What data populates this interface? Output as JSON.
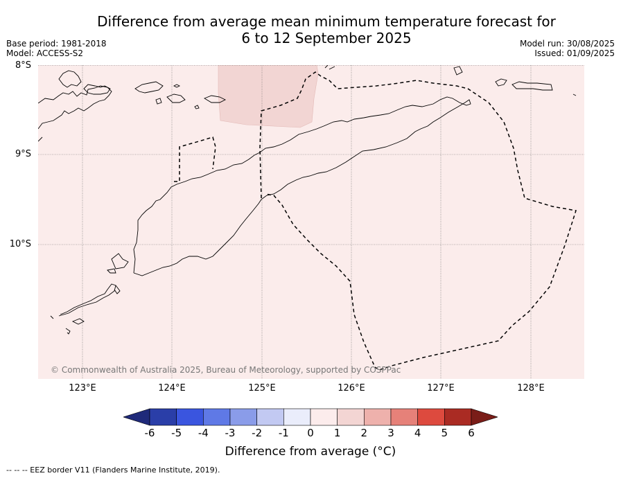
{
  "title_line1": "Difference from average mean minimum temperature forecast for",
  "title_line2": "6 to 12 September 2025",
  "base_period": "Base period: 1981-2018",
  "model": "Model: ACCESS-S2",
  "model_run": "Model run: 30/08/2025",
  "issued": "Issued: 01/09/2025",
  "lat_labels": [
    "8°S",
    "9°S",
    "10°S"
  ],
  "lon_labels": [
    "123°E",
    "124°E",
    "125°E",
    "126°E",
    "127°E",
    "128°E"
  ],
  "copyright": "© Commonwealth of Australia 2025, Bureau of Meteorology, supported by COSPPac",
  "colorbar_ticks": [
    "-6",
    "-5",
    "-4",
    "-3",
    "-2",
    "-1",
    "0",
    "1",
    "2",
    "3",
    "4",
    "5",
    "6"
  ],
  "colorbar_colors": [
    "#2a3ea8",
    "#3a55df",
    "#5f79e6",
    "#8a9ce9",
    "#c2c9f2",
    "#eaedfb",
    "#fcecec",
    "#f3d5d3",
    "#eeb1ac",
    "#e68179",
    "#dd4a3e",
    "#aa2b23"
  ],
  "colorbar_low_color": "#1f2a7a",
  "colorbar_high_color": "#7a1d18",
  "background_anomaly_color": "#fbeceb",
  "warm_patch_color": "#f2d5d3",
  "colorbar_label": "Difference from average (°C)",
  "footnote": "--  --  -- EEZ border V11 (Flanders Marine Institute, 2019)."
}
